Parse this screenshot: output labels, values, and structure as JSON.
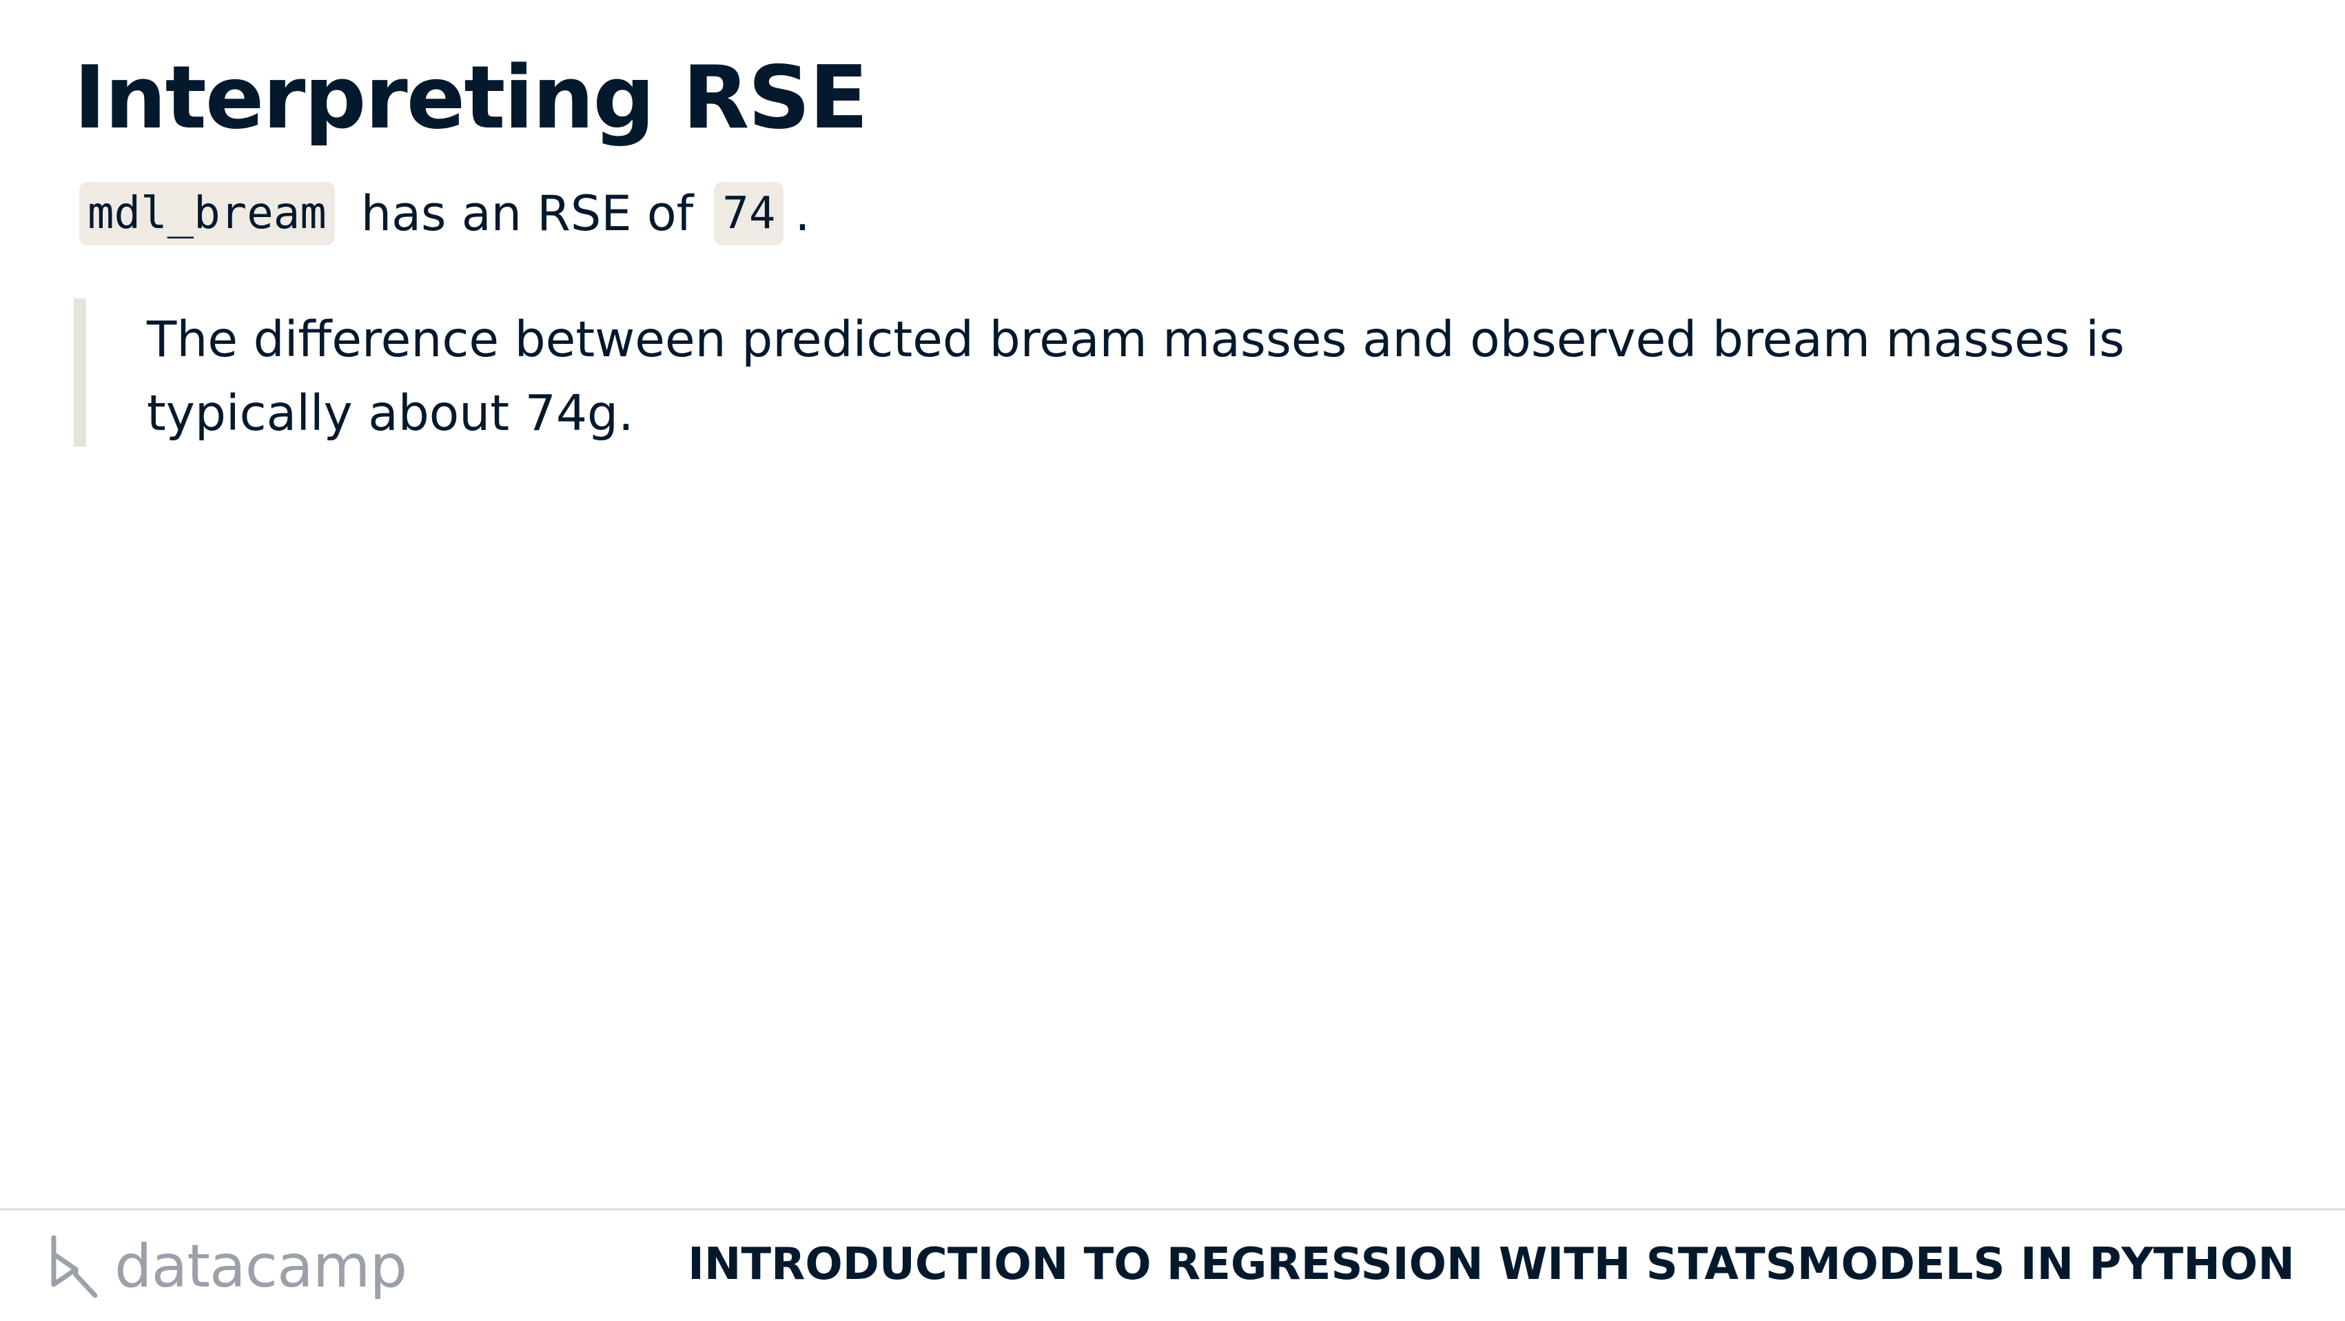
{
  "slide": {
    "title": "Interpreting RSE",
    "intro": {
      "model_name": "mdl_bream",
      "text": "has an RSE of",
      "value": "74",
      "end": "."
    },
    "quote": "The difference between predicted bream masses and observed bream masses is typically about 74g."
  },
  "footer": {
    "logo_text": "datacamp",
    "logo_icon": "datacamp-logo-icon",
    "course_title": "INTRODUCTION TO REGRESSION WITH STATSMODELS IN PYTHON"
  },
  "colors": {
    "text": "#05192d",
    "code_background": "#efebe4",
    "quote_border": "#e7e2da",
    "logo_gray": "#9aa1a8"
  }
}
